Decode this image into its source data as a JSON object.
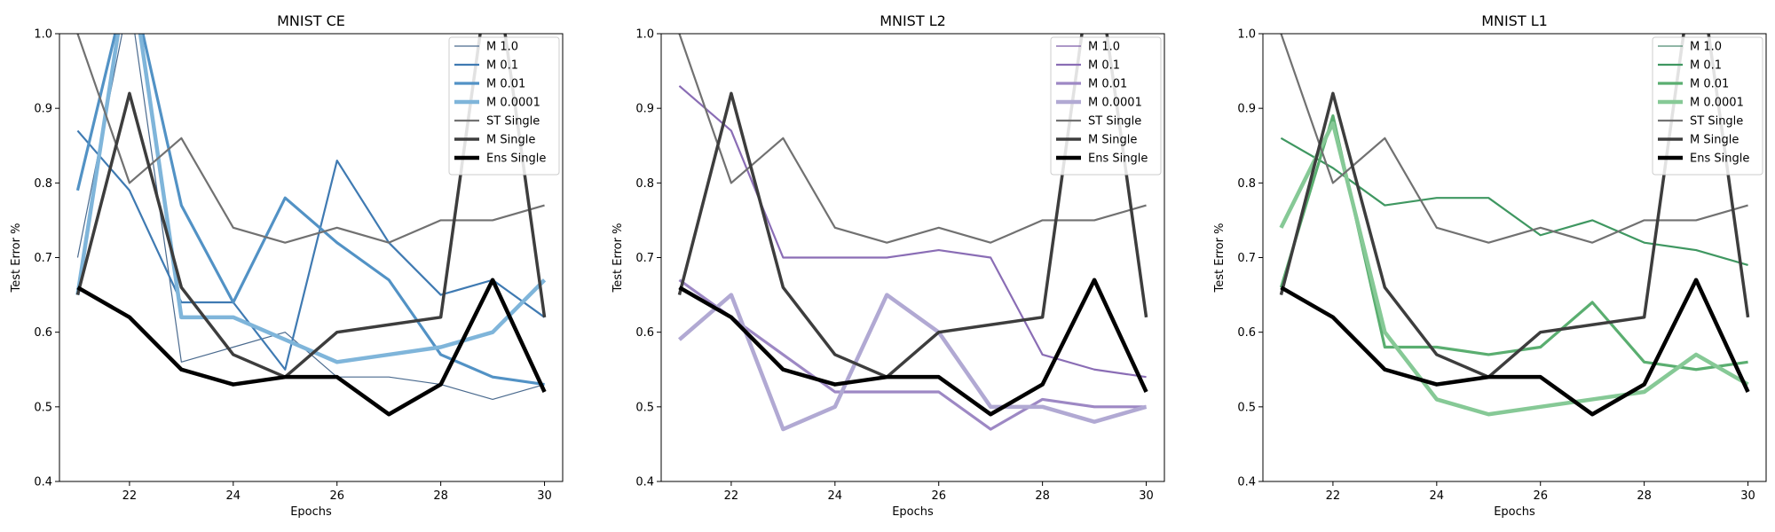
{
  "chart_data": [
    {
      "type": "line",
      "title": "MNIST CE",
      "xlabel": "Epochs",
      "ylabel": "Test Error %",
      "xlim": [
        20.65,
        30.35
      ],
      "ylim": [
        0.4,
        1.0
      ],
      "xticks": [
        22,
        24,
        26,
        28,
        30
      ],
      "yticks": [
        0.4,
        0.5,
        0.6,
        0.7,
        0.8,
        0.9,
        1.0
      ],
      "x": [
        21,
        22,
        23,
        24,
        25,
        26,
        27,
        28,
        29,
        30
      ],
      "legend": "top-right",
      "series": [
        {
          "name": "M 1.0",
          "color": "#4a6a8e",
          "width": 1.2,
          "values": [
            0.7,
            1.05,
            0.56,
            0.58,
            0.6,
            0.54,
            0.54,
            0.53,
            0.51,
            0.53
          ]
        },
        {
          "name": "M 0.1",
          "color": "#3f7ab2",
          "width": 2.2,
          "values": [
            0.87,
            0.79,
            0.64,
            0.64,
            0.55,
            0.83,
            0.72,
            0.65,
            0.67,
            0.62
          ]
        },
        {
          "name": "M 0.01",
          "color": "#5292c5",
          "width": 3.2,
          "values": [
            0.79,
            1.08,
            0.77,
            0.64,
            0.78,
            0.72,
            0.67,
            0.57,
            0.54,
            0.53
          ]
        },
        {
          "name": "M 0.0001",
          "color": "#7fb5da",
          "width": 4.5,
          "values": [
            0.65,
            1.1,
            0.62,
            0.62,
            0.59,
            0.56,
            0.57,
            0.58,
            0.6,
            0.67
          ]
        },
        {
          "name": "ST Single",
          "color": "#717171",
          "width": 2.2,
          "values": [
            1.0,
            0.8,
            0.86,
            0.74,
            0.72,
            0.74,
            0.72,
            0.75,
            0.75,
            0.77
          ]
        },
        {
          "name": "M Single",
          "color": "#3d3d3d",
          "width": 3.5,
          "values": [
            0.65,
            0.92,
            0.66,
            0.57,
            0.54,
            0.6,
            0.61,
            0.62,
            1.12,
            0.62
          ]
        },
        {
          "name": "Ens Single",
          "color": "#000000",
          "width": 4.5,
          "values": [
            0.66,
            0.62,
            0.55,
            0.53,
            0.54,
            0.54,
            0.49,
            0.53,
            0.67,
            0.52
          ]
        }
      ]
    },
    {
      "type": "line",
      "title": "MNIST L2",
      "xlabel": "Epochs",
      "ylabel": "Test Error %",
      "xlim": [
        20.65,
        30.35
      ],
      "ylim": [
        0.4,
        1.0
      ],
      "xticks": [
        22,
        24,
        26,
        28,
        30
      ],
      "yticks": [
        0.4,
        0.5,
        0.6,
        0.7,
        0.8,
        0.9,
        1.0
      ],
      "x": [
        21,
        22,
        23,
        24,
        25,
        26,
        27,
        28,
        29,
        30
      ],
      "legend": "top-right",
      "series": [
        {
          "name": "M 1.0",
          "color": "#7c5aa6",
          "width": 1.2,
          "values": [
            0.93,
            0.87,
            0.7,
            0.7,
            0.7,
            0.71,
            0.7,
            0.57,
            0.55,
            0.54
          ]
        },
        {
          "name": "M 0.1",
          "color": "#8a6db5",
          "width": 2.2,
          "values": [
            0.93,
            0.87,
            0.7,
            0.7,
            0.7,
            0.71,
            0.7,
            0.57,
            0.55,
            0.54
          ]
        },
        {
          "name": "M 0.01",
          "color": "#9d88c4",
          "width": 3.2,
          "values": [
            0.67,
            0.62,
            0.57,
            0.52,
            0.52,
            0.52,
            0.47,
            0.51,
            0.5,
            0.5
          ]
        },
        {
          "name": "M 0.0001",
          "color": "#b1a9d3",
          "width": 4.5,
          "values": [
            0.59,
            0.65,
            0.47,
            0.5,
            0.65,
            0.6,
            0.5,
            0.5,
            0.48,
            0.5
          ]
        },
        {
          "name": "ST Single",
          "color": "#717171",
          "width": 2.2,
          "values": [
            1.0,
            0.8,
            0.86,
            0.74,
            0.72,
            0.74,
            0.72,
            0.75,
            0.75,
            0.77
          ]
        },
        {
          "name": "M Single",
          "color": "#3d3d3d",
          "width": 3.5,
          "values": [
            0.65,
            0.92,
            0.66,
            0.57,
            0.54,
            0.6,
            0.61,
            0.62,
            1.12,
            0.62
          ]
        },
        {
          "name": "Ens Single",
          "color": "#000000",
          "width": 4.5,
          "values": [
            0.66,
            0.62,
            0.55,
            0.53,
            0.54,
            0.54,
            0.49,
            0.53,
            0.67,
            0.52
          ]
        }
      ]
    },
    {
      "type": "line",
      "title": "MNIST L1",
      "xlabel": "Epochs",
      "ylabel": "Test Error %",
      "xlim": [
        20.65,
        30.35
      ],
      "ylim": [
        0.4,
        1.0
      ],
      "xticks": [
        22,
        24,
        26,
        28,
        30
      ],
      "yticks": [
        0.4,
        0.5,
        0.6,
        0.7,
        0.8,
        0.9,
        1.0
      ],
      "x": [
        21,
        22,
        23,
        24,
        25,
        26,
        27,
        28,
        29,
        30
      ],
      "legend": "top-right",
      "series": [
        {
          "name": "M 1.0",
          "color": "#4e8a70",
          "width": 1.2,
          "values": [
            0.86,
            0.82,
            0.77,
            0.78,
            0.78,
            0.73,
            0.75,
            0.72,
            0.71,
            0.69
          ]
        },
        {
          "name": "M 0.1",
          "color": "#3f9761",
          "width": 2.2,
          "values": [
            0.86,
            0.82,
            0.77,
            0.78,
            0.78,
            0.73,
            0.75,
            0.72,
            0.71,
            0.69
          ]
        },
        {
          "name": "M 0.01",
          "color": "#5aae70",
          "width": 3.2,
          "values": [
            0.66,
            0.89,
            0.58,
            0.58,
            0.57,
            0.58,
            0.64,
            0.56,
            0.55,
            0.56
          ]
        },
        {
          "name": "M 0.0001",
          "color": "#86c996",
          "width": 4.5,
          "values": [
            0.74,
            0.88,
            0.6,
            0.51,
            0.49,
            0.5,
            0.51,
            0.52,
            0.57,
            0.53
          ]
        },
        {
          "name": "ST Single",
          "color": "#717171",
          "width": 2.2,
          "values": [
            1.0,
            0.8,
            0.86,
            0.74,
            0.72,
            0.74,
            0.72,
            0.75,
            0.75,
            0.77
          ]
        },
        {
          "name": "M Single",
          "color": "#3d3d3d",
          "width": 3.5,
          "values": [
            0.65,
            0.92,
            0.66,
            0.57,
            0.54,
            0.6,
            0.61,
            0.62,
            1.12,
            0.62
          ]
        },
        {
          "name": "Ens Single",
          "color": "#000000",
          "width": 4.5,
          "values": [
            0.66,
            0.62,
            0.55,
            0.53,
            0.54,
            0.54,
            0.49,
            0.53,
            0.67,
            0.52
          ]
        }
      ]
    }
  ]
}
